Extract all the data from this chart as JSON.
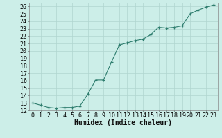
{
  "x": [
    0,
    1,
    2,
    3,
    4,
    5,
    6,
    7,
    8,
    9,
    10,
    11,
    12,
    13,
    14,
    15,
    16,
    17,
    18,
    19,
    20,
    21,
    22,
    23
  ],
  "y": [
    13.0,
    12.7,
    12.4,
    12.3,
    12.4,
    12.4,
    12.6,
    14.2,
    16.1,
    16.1,
    18.5,
    20.8,
    21.1,
    21.4,
    21.6,
    22.2,
    23.2,
    23.1,
    23.2,
    23.4,
    25.0,
    25.5,
    25.9,
    26.2
  ],
  "line_color": "#2e7d6e",
  "marker": "+",
  "marker_size": 3.5,
  "marker_color": "#2e7d6e",
  "bg_color": "#cceee8",
  "grid_color": "#b0d5cf",
  "xlabel": "Humidex (Indice chaleur)",
  "xlabel_fontsize": 7,
  "xlim": [
    -0.5,
    23.5
  ],
  "ylim": [
    12,
    26.5
  ],
  "yticks": [
    12,
    13,
    14,
    15,
    16,
    17,
    18,
    19,
    20,
    21,
    22,
    23,
    24,
    25,
    26
  ],
  "xticks": [
    0,
    1,
    2,
    3,
    4,
    5,
    6,
    7,
    8,
    9,
    10,
    11,
    12,
    13,
    14,
    15,
    16,
    17,
    18,
    19,
    20,
    21,
    22,
    23
  ],
  "tick_fontsize": 6,
  "spine_color": "#888888"
}
